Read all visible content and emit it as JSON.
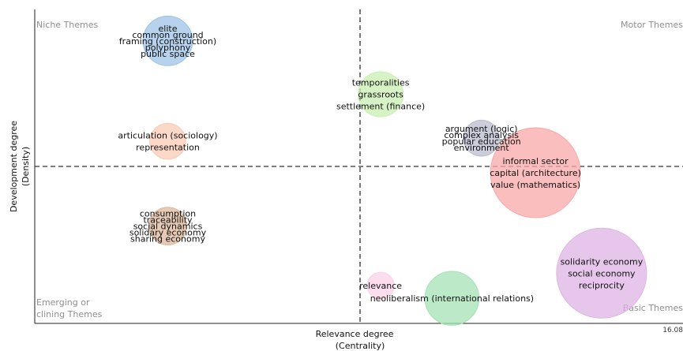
{
  "chart_data": {
    "type": "scatter",
    "title": "",
    "xlabel": [
      "Relevance degree",
      "(Centrality)"
    ],
    "ylabel": [
      "Development degree",
      "(Density)"
    ],
    "x_tick_right": "16.08",
    "quadrants": {
      "top_left": [
        "Niche Themes"
      ],
      "top_right": [
        "Motor Themes"
      ],
      "bottom_left": [
        "Emerging or",
        "clining Themes"
      ],
      "bottom_right": [
        "Basic Themes"
      ]
    },
    "grid": false,
    "clusters": [
      {
        "labels": [
          "elite",
          "common ground",
          "framing (construction)",
          "polyphony",
          "public space"
        ],
        "color": "#9dc3e6",
        "x": 3.3,
        "y": 0.9,
        "size": 0.55
      },
      {
        "labels": [
          "temporalities",
          "grassroots",
          "settlement (finance)"
        ],
        "color": "#c9efb3",
        "x": 8.58,
        "y": 0.73,
        "size": 0.5
      },
      {
        "labels": [
          "articulation (sociology)",
          "representation"
        ],
        "color": "#f9cbb4",
        "x": 3.3,
        "y": 0.58,
        "size": 0.4
      },
      {
        "labels": [
          "argument (logic)",
          "complex analysis",
          "popular education",
          "environment"
        ],
        "color": "#b9bccf",
        "x": 11.08,
        "y": 0.59,
        "size": 0.4
      },
      {
        "labels": [
          "informal sector",
          "capital (architecture)",
          "value (mathematics)"
        ],
        "color": "#f9a8a8",
        "x": 12.42,
        "y": 0.48,
        "size": 1.0
      },
      {
        "labels": [
          "consumption",
          "traceability",
          "social dynamics",
          "solidary economy",
          "sharing economy"
        ],
        "color": "#ddb89c",
        "x": 3.3,
        "y": 0.31,
        "size": 0.42
      },
      {
        "labels": [
          "solidarity economy",
          "social economy",
          "reciprocity"
        ],
        "color": "#deb4e4",
        "x": 14.06,
        "y": 0.16,
        "size": 1.0
      },
      {
        "labels": [
          "relevance"
        ],
        "color": "#fbd2e8",
        "x": 8.58,
        "y": 0.12,
        "size": 0.3
      },
      {
        "labels": [
          "neoliberalism (international relations)"
        ],
        "color": "#a6e1b6",
        "x": 10.35,
        "y": 0.08,
        "size": 0.6
      }
    ]
  }
}
